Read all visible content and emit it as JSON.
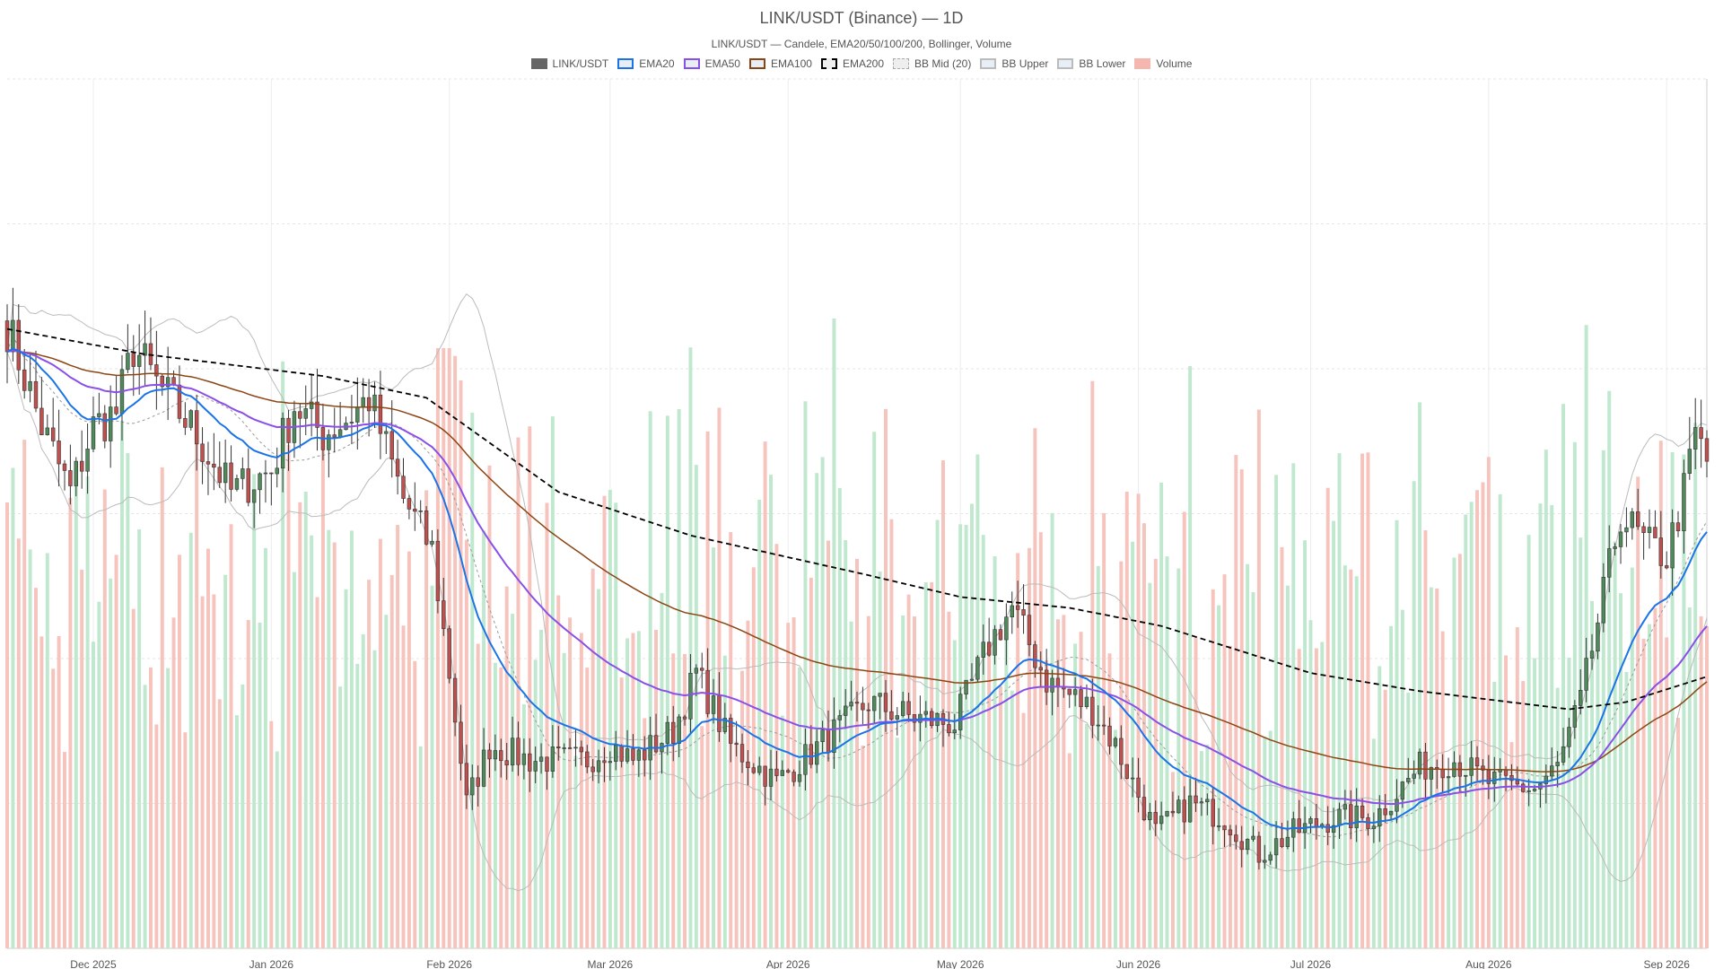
{
  "chart_data": {
    "type": "candlestick",
    "title": "LINK/USDT (Binance) — 1D",
    "subtitle": "LINK/USDT — Candele, EMA20/50/100/200, Bollinger, Volume",
    "legend": [
      {
        "name": "LINK/USDT",
        "color": "#666666",
        "style": "solid-fill"
      },
      {
        "name": "EMA20",
        "color": "#1a73e8",
        "style": "line"
      },
      {
        "name": "EMA50",
        "color": "#8a4fe8",
        "style": "line"
      },
      {
        "name": "EMA100",
        "color": "#8b4513",
        "style": "line"
      },
      {
        "name": "EMA200",
        "color": "#000000",
        "style": "dashed"
      },
      {
        "name": "BB Mid (20)",
        "color": "#aaaaaa",
        "style": "dotted"
      },
      {
        "name": "BB Upper",
        "color": "#bbbbbb",
        "style": "line"
      },
      {
        "name": "BB Lower",
        "color": "#bbbbbb",
        "style": "line"
      },
      {
        "name": "Volume",
        "color": "#f4b6ae",
        "style": "bar"
      }
    ],
    "legend_placement": "top-center",
    "x_tick_labels": [
      "Dec 2025",
      "Jan 2026",
      "Feb 2026",
      "Mar 2026",
      "Apr 2026",
      "May 2026",
      "Jun 2026",
      "Jul 2026",
      "Aug 2026",
      "Sep 2026"
    ],
    "x_tick_dates": [
      "2025-12-01",
      "2026-01-01",
      "2026-02-01",
      "2026-03-01",
      "2026-04-01",
      "2026-05-01",
      "2026-06-01",
      "2026-07-01",
      "2026-08-01",
      "2026-09-01"
    ],
    "x_range": [
      "2025-11-16",
      "2026-09-08"
    ],
    "y_ticks": [
      6,
      8,
      10,
      12,
      14,
      16,
      18
    ],
    "ylim": [
      6,
      18
    ],
    "y_axis_side": "right",
    "grid": true,
    "colors": {
      "up": "#4f8a5b",
      "down": "#c0504d",
      "vol_up": "#bfe8cf",
      "vol_down": "#f6c3bd"
    },
    "price_keyframes": [
      [
        "2025-11-16",
        14.6
      ],
      [
        "2025-11-22",
        13.2
      ],
      [
        "2025-11-27",
        12.3
      ],
      [
        "2025-12-01",
        13.2
      ],
      [
        "2025-12-05",
        13.4
      ],
      [
        "2025-12-08",
        14.3
      ],
      [
        "2025-12-12",
        13.8
      ],
      [
        "2025-12-18",
        13.2
      ],
      [
        "2025-12-25",
        12.3
      ],
      [
        "2026-01-01",
        12.6
      ],
      [
        "2026-01-05",
        13.5
      ],
      [
        "2026-01-10",
        13.1
      ],
      [
        "2026-01-14",
        13.3
      ],
      [
        "2026-01-18",
        13.6
      ],
      [
        "2026-01-24",
        12.2
      ],
      [
        "2026-01-29",
        11.5
      ],
      [
        "2026-02-01",
        9.8
      ],
      [
        "2026-02-04",
        8.0
      ],
      [
        "2026-02-08",
        8.8
      ],
      [
        "2026-02-15",
        8.6
      ],
      [
        "2026-02-25",
        8.6
      ],
      [
        "2026-03-01",
        8.8
      ],
      [
        "2026-03-05",
        8.6
      ],
      [
        "2026-03-12",
        9.0
      ],
      [
        "2026-03-16",
        9.8
      ],
      [
        "2026-03-22",
        8.8
      ],
      [
        "2026-03-30",
        8.3
      ],
      [
        "2026-04-05",
        8.7
      ],
      [
        "2026-04-15",
        9.4
      ],
      [
        "2026-04-22",
        9.2
      ],
      [
        "2026-04-30",
        9.1
      ],
      [
        "2026-05-06",
        10.2
      ],
      [
        "2026-05-10",
        10.7
      ],
      [
        "2026-05-16",
        9.7
      ],
      [
        "2026-05-24",
        9.3
      ],
      [
        "2026-05-28",
        8.8
      ],
      [
        "2026-06-04",
        7.6
      ],
      [
        "2026-06-10",
        8.0
      ],
      [
        "2026-06-16",
        7.8
      ],
      [
        "2026-06-22",
        7.3
      ],
      [
        "2026-06-28",
        7.6
      ],
      [
        "2026-07-05",
        7.8
      ],
      [
        "2026-07-12",
        7.8
      ],
      [
        "2026-07-20",
        8.5
      ],
      [
        "2026-07-26",
        8.6
      ],
      [
        "2026-08-01",
        8.3
      ],
      [
        "2026-08-09",
        8.2
      ],
      [
        "2026-08-13",
        8.5
      ],
      [
        "2026-08-17",
        9.4
      ],
      [
        "2026-08-20",
        10.5
      ],
      [
        "2026-08-24",
        12.0
      ],
      [
        "2026-08-28",
        11.6
      ],
      [
        "2026-09-01",
        11.4
      ],
      [
        "2026-09-04",
        12.3
      ],
      [
        "2026-09-06",
        13.1
      ],
      [
        "2026-09-08",
        12.7
      ]
    ],
    "ema200_keyframes": [
      [
        "2025-11-16",
        14.55
      ],
      [
        "2025-12-10",
        14.2
      ],
      [
        "2026-01-10",
        13.9
      ],
      [
        "2026-01-28",
        13.6
      ],
      [
        "2026-02-20",
        12.3
      ],
      [
        "2026-03-15",
        11.7
      ],
      [
        "2026-04-15",
        11.15
      ],
      [
        "2026-05-01",
        10.85
      ],
      [
        "2026-05-20",
        10.7
      ],
      [
        "2026-06-05",
        10.45
      ],
      [
        "2026-07-01",
        9.8
      ],
      [
        "2026-07-20",
        9.55
      ],
      [
        "2026-08-15",
        9.3
      ],
      [
        "2026-08-25",
        9.4
      ],
      [
        "2026-09-08",
        9.75
      ]
    ],
    "volume_ylim": [
      0,
      1
    ],
    "volume_note_spike_date": "2026-01-31"
  }
}
